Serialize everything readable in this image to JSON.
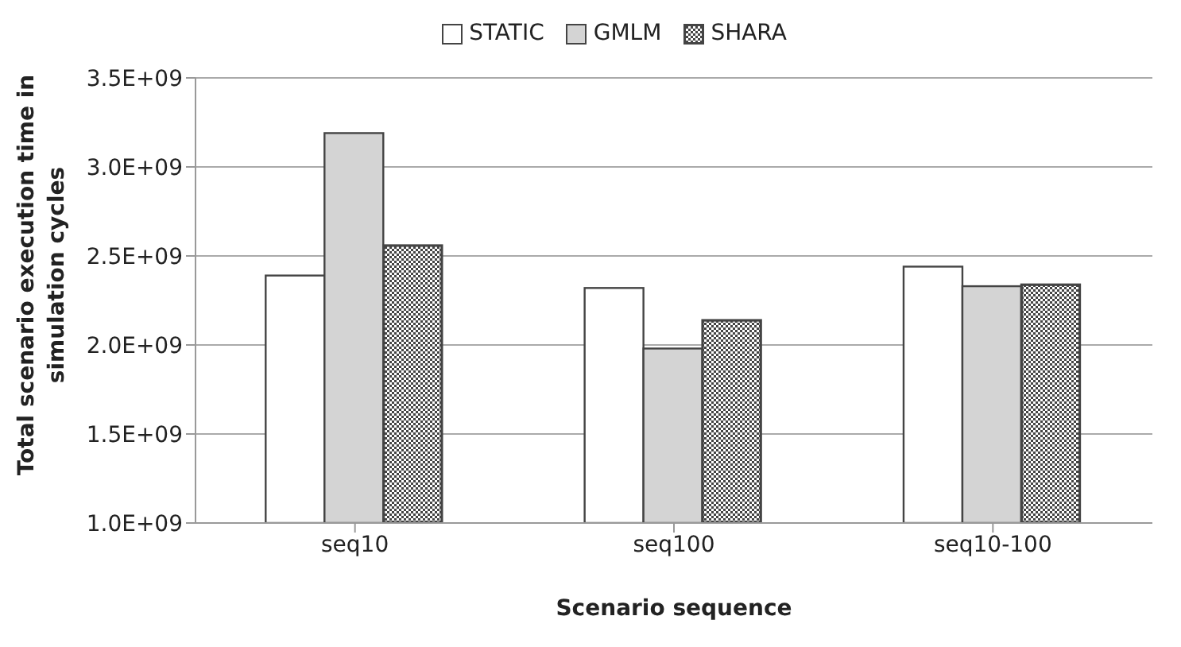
{
  "chart_data": {
    "type": "bar",
    "xlabel": "Scenario sequence",
    "ylabel": "Total scenario execution time in simulation cycles",
    "categories": [
      "seq10",
      "seq100",
      "seq10-100"
    ],
    "series": [
      {
        "name": "STATIC",
        "color": "#ffffff",
        "values": [
          2390000000,
          2320000000,
          2440000000
        ]
      },
      {
        "name": "GMLM",
        "color": "#d4d4d4",
        "values": [
          3190000000,
          1980000000,
          2330000000
        ]
      },
      {
        "name": "SHARA",
        "color": "#444444",
        "values": [
          2560000000,
          2140000000,
          2340000000
        ]
      }
    ],
    "ylim": [
      1000000000,
      3500000000
    ],
    "yticks": [
      {
        "value": 1000000000,
        "label": "1.0E+09"
      },
      {
        "value": 1500000000,
        "label": "1.5E+09"
      },
      {
        "value": 2000000000,
        "label": "2.0E+09"
      },
      {
        "value": 2500000000,
        "label": "2.5E+09"
      },
      {
        "value": 3000000000,
        "label": "3.0E+09"
      },
      {
        "value": 3500000000,
        "label": "3.5E+09"
      }
    ],
    "grid": "y",
    "legend": "top"
  }
}
